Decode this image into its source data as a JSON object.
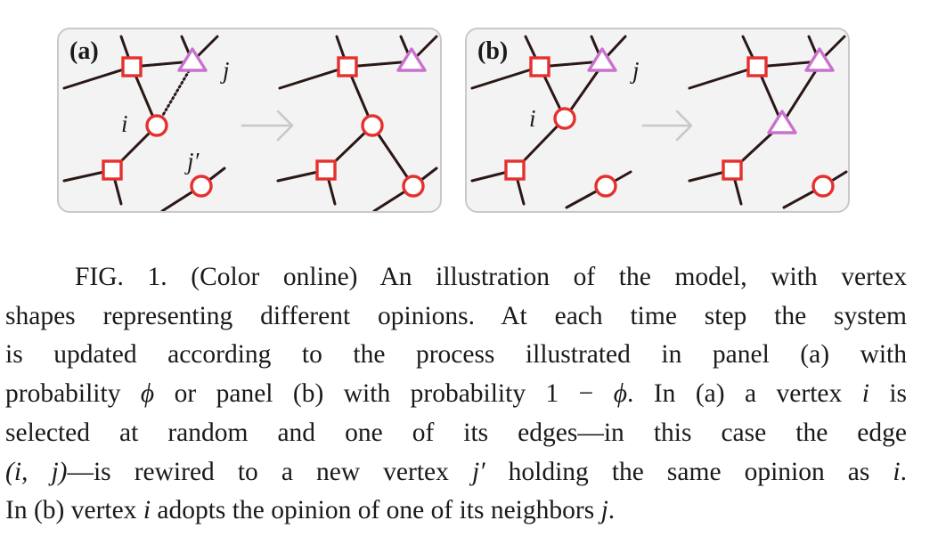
{
  "figure": {
    "panel_a": {
      "label": "(a)",
      "vertex_labels": {
        "i": "i",
        "j": "j",
        "j_prime": "j′"
      }
    },
    "panel_b": {
      "label": "(b)",
      "vertex_labels": {
        "i": "i",
        "j": "j"
      }
    },
    "colors": {
      "square_and_circle_opinion": "#e5302e",
      "triangle_opinion": "#c872cc",
      "edges": "#2a1716",
      "panel_background": "#f3f3f3",
      "arrow": "#c8c8c8"
    }
  },
  "caption": {
    "lines": [
      "FIG. 1. (Color online) An illustration of the model, with vertex",
      "shapes representing different opinions. At each time step the system",
      "is updated according to the process illustrated in panel (a) with",
      "probability ϕ or panel (b) with probability 1 − ϕ. In (a) a vertex i is",
      "selected at random and one of its edges—in this case the edge",
      "(i, j)—is rewired to a new vertex j′ holding the same opinion as i.",
      "In (b) vertex i adopts the opinion of one of its neighbors j."
    ]
  }
}
